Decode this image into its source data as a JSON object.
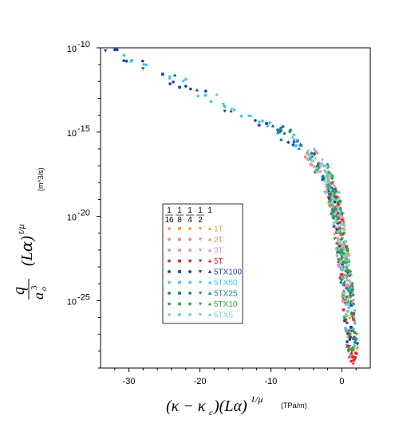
{
  "chart_data": {
    "type": "scatter",
    "title": "",
    "xlabel": "(κ − κɔ)(Lα)^{1/μ}",
    "x_unit": "(TPa/m)",
    "ylabel": "q/aₒ³ (Lα)^{t/μ}",
    "y_unit": "(m^3/s)",
    "xlim": [
      -34,
      4
    ],
    "ylim_exponent": [
      -29,
      -10
    ],
    "y_scale": "log",
    "x_ticks": [
      {
        "value": -30,
        "label": "-30"
      },
      {
        "value": -20,
        "label": "-20"
      },
      {
        "value": -10,
        "label": "-10"
      },
      {
        "value": 0,
        "label": "0"
      }
    ],
    "y_ticks": [
      {
        "exp": -10,
        "base": "10",
        "label": "-10"
      },
      {
        "exp": -15,
        "base": "10",
        "label": "-15"
      },
      {
        "exp": -20,
        "base": "10",
        "label": "-20"
      },
      {
        "exp": -25,
        "base": "10",
        "label": "-25"
      }
    ],
    "grid": false,
    "legend": {
      "placement": "center-left",
      "header_fractions": [
        {
          "num": "1",
          "den": "16"
        },
        {
          "num": "1",
          "den": "8"
        },
        {
          "num": "1",
          "den": "4"
        },
        {
          "num": "1",
          "den": "2"
        },
        {
          "num": "1",
          "den": ""
        }
      ],
      "marker_order": [
        "circle",
        "square",
        "diamond",
        "triangle-down",
        "triangle-up"
      ]
    },
    "series": [
      {
        "name": "1T",
        "color": "#e8a23a"
      },
      {
        "name": "2T",
        "color": "#f08c7c"
      },
      {
        "name": "3T",
        "color": "#e28fd0"
      },
      {
        "name": "5T",
        "color": "#e0263a"
      },
      {
        "name": "5TX100",
        "color": "#1f3fa8"
      },
      {
        "name": "5TX50",
        "color": "#3ec8ef"
      },
      {
        "name": "5TX25",
        "color": "#178a8a"
      },
      {
        "name": "5TX10",
        "color": "#2fa84a"
      },
      {
        "name": "5TX5",
        "color": "#7fd3b8"
      }
    ],
    "curve": [
      [
        -33,
        -10.0
      ],
      [
        -30,
        -10.6
      ],
      [
        -25,
        -11.6
      ],
      [
        -21,
        -12.5
      ],
      [
        -17,
        -13.3
      ],
      [
        -13,
        -14.0
      ],
      [
        -10,
        -14.6
      ],
      [
        -7,
        -15.4
      ],
      [
        -5,
        -16.1
      ],
      [
        -3,
        -17.0
      ],
      [
        -2,
        -17.8
      ],
      [
        -1.2,
        -18.8
      ],
      [
        -0.6,
        -20.0
      ],
      [
        -0.1,
        -21.5
      ],
      [
        0.4,
        -23.0
      ],
      [
        0.8,
        -24.6
      ],
      [
        1.2,
        -26.2
      ],
      [
        1.5,
        -27.6
      ],
      [
        1.7,
        -28.6
      ]
    ]
  }
}
